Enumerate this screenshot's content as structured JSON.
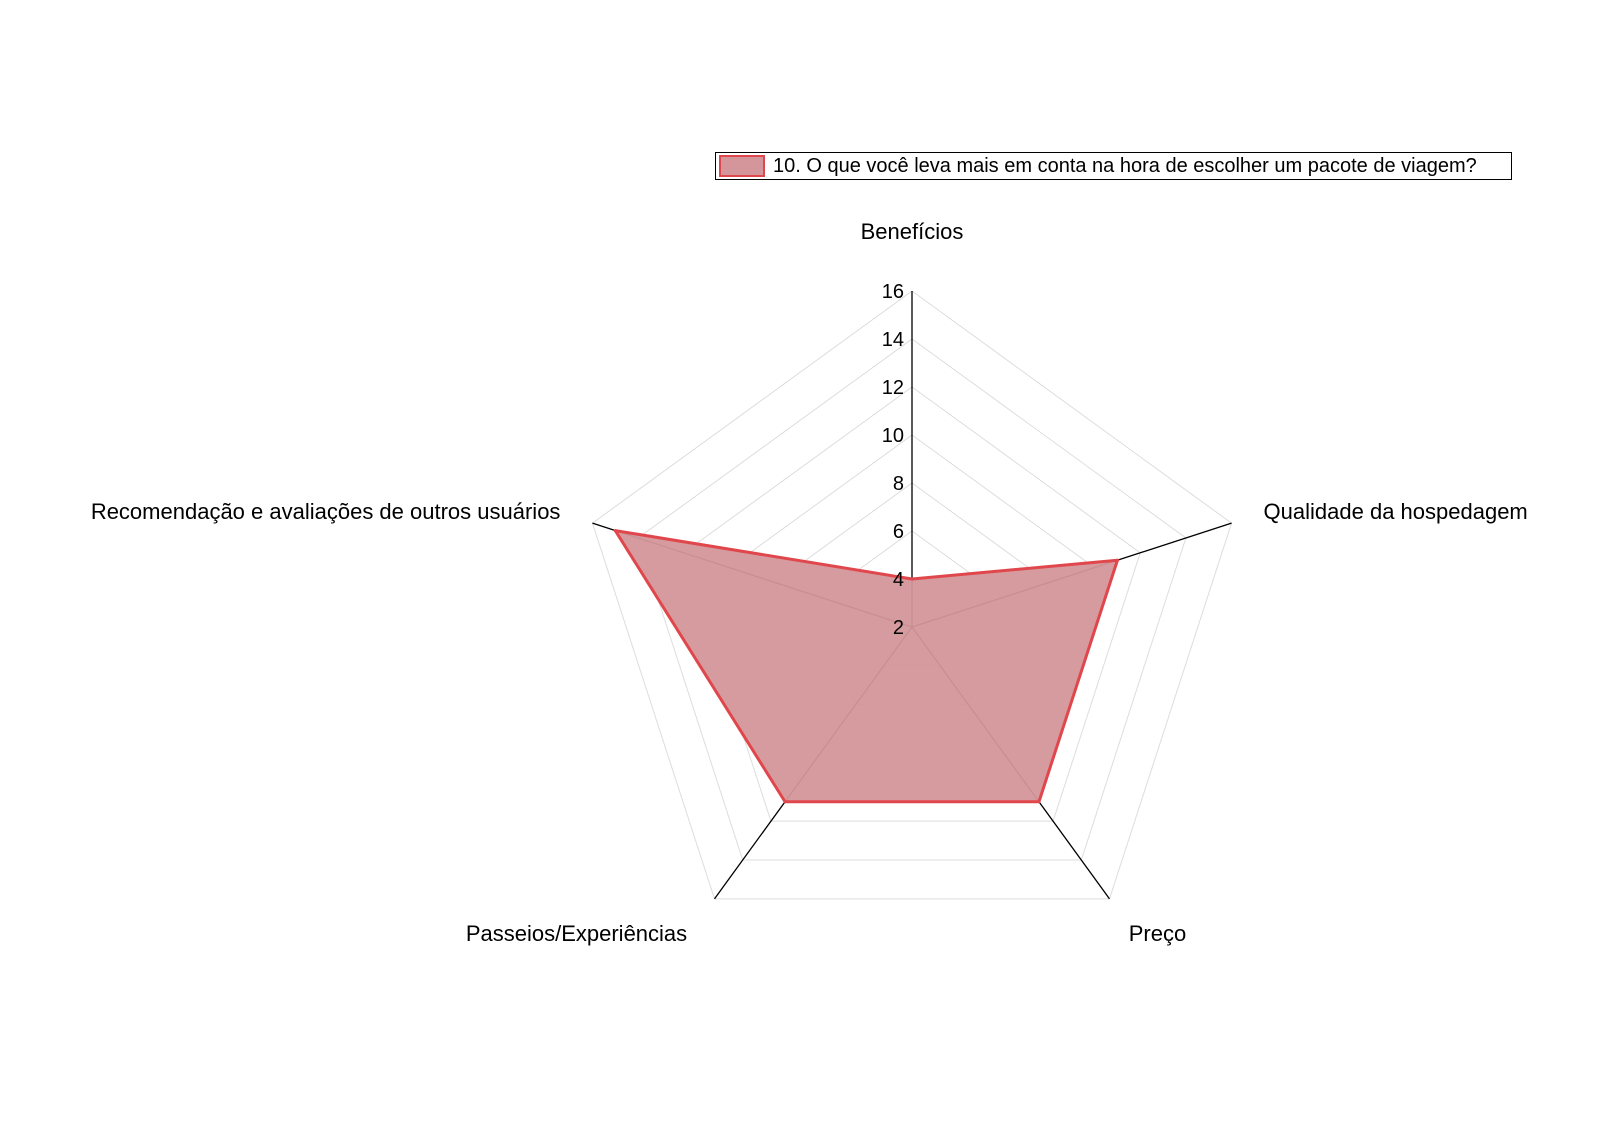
{
  "chart_data": {
    "type": "radar",
    "categories": [
      "Benefícios",
      "Qualidade da hospedagem",
      "Preço",
      "Passeios/Experiências",
      "Recomendação e avaliações de outros usuários"
    ],
    "series": [
      {
        "name": "10. O que você leva mais em conta na hora de escolher um pacote de viagem?",
        "values": [
          4,
          11,
          11,
          11,
          15
        ]
      }
    ],
    "rmin": 2,
    "rmax": 16,
    "ticks": [
      2,
      4,
      6,
      8,
      10,
      12,
      14,
      16
    ],
    "tick_labels": [
      "2",
      "4",
      "6",
      "8",
      "10",
      "12",
      "14",
      "16"
    ],
    "grid": true,
    "legend_position": "top-right",
    "colors": {
      "fill": "#d4969a",
      "stroke": "#e0474c",
      "grid": "#dddddd",
      "axis": "#000000"
    }
  }
}
